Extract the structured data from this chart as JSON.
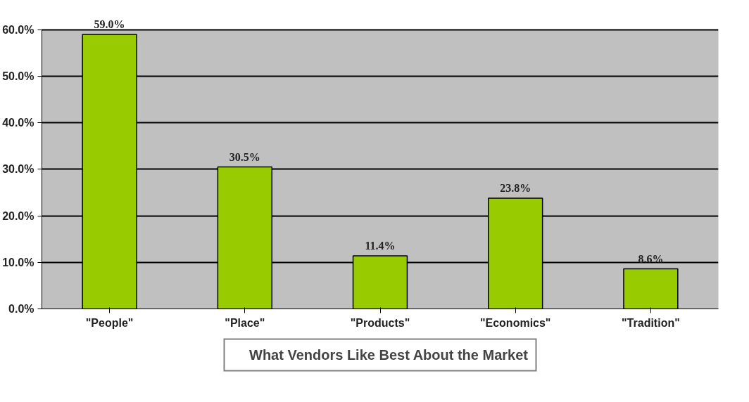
{
  "chart_data": {
    "type": "bar",
    "categories": [
      "\"People\"",
      "\"Place\"",
      "\"Products\"",
      "\"Economics\"",
      "\"Tradition\""
    ],
    "series": [
      {
        "name": "What Vendors Like Best About the Market",
        "color": "#99cc00",
        "values": [
          59.0,
          30.5,
          11.4,
          23.8,
          8.6
        ]
      }
    ],
    "value_labels": [
      "59.0%",
      "30.5%",
      "11.4%",
      "23.8%",
      "8.6%"
    ],
    "ylim": [
      0,
      60
    ],
    "yticks": [
      {
        "value": 0,
        "label": "0.0%"
      },
      {
        "value": 10,
        "label": "10.0%"
      },
      {
        "value": 20,
        "label": "20.0%"
      },
      {
        "value": 30,
        "label": "30.0%"
      },
      {
        "value": 40,
        "label": "40.0%"
      },
      {
        "value": 50,
        "label": "50.0%"
      },
      {
        "value": 60,
        "label": "60.0%"
      }
    ],
    "grid": "y",
    "legend": "bottom"
  }
}
